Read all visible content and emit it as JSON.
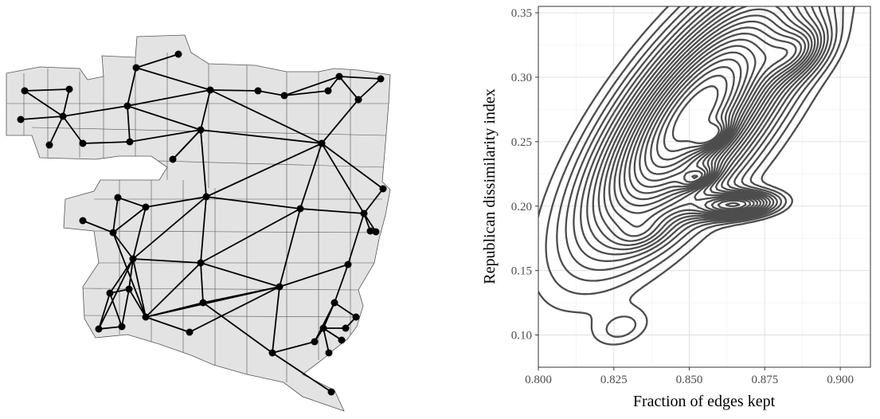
{
  "chart_data": [
    {
      "type": "other",
      "subtype": "map-graph",
      "description_nodes": 62,
      "colors": {
        "region_fill": "#e3e3e3",
        "region_stroke": "#555555",
        "edge": "#000000",
        "node": "#000000"
      }
    },
    {
      "type": "contour",
      "xlabel": "Fraction of edges kept",
      "ylabel": "Republican dissimilarity index",
      "xlim": [
        0.8,
        0.91
      ],
      "ylim": [
        0.075,
        0.355
      ],
      "x_ticks": [
        0.8,
        0.825,
        0.85,
        0.875,
        0.9
      ],
      "x_tick_labels": [
        "0.800",
        "0.825",
        "0.850",
        "0.875",
        "0.900"
      ],
      "y_ticks": [
        0.1,
        0.15,
        0.2,
        0.25,
        0.3,
        0.35
      ],
      "y_tick_labels": [
        "0.10",
        "0.15",
        "0.20",
        "0.25",
        "0.30",
        "0.35"
      ],
      "grid": true,
      "colors": {
        "contour": "#4d4d4d",
        "grid_major": "#e0e0e0",
        "grid_minor": "#f0f0f0",
        "border": "#333333"
      },
      "density": {
        "components": [
          {
            "x": 0.852,
            "y": 0.272,
            "sx": 0.024,
            "sy": 0.068,
            "rho": 0.74,
            "w": 1.0
          },
          {
            "x": 0.866,
            "y": 0.201,
            "sx": 0.009,
            "sy": 0.007,
            "rho": 0.2,
            "w": 0.55
          },
          {
            "x": 0.886,
            "y": 0.32,
            "sx": 0.007,
            "sy": 0.014,
            "rho": 0.4,
            "w": 0.28
          },
          {
            "x": 0.828,
            "y": 0.105,
            "sx": 0.007,
            "sy": 0.011,
            "rho": 0.3,
            "w": 0.12
          },
          {
            "x": 0.834,
            "y": 0.178,
            "sx": 0.006,
            "sy": 0.009,
            "rho": 0.3,
            "w": 0.1
          },
          {
            "x": 0.853,
            "y": 0.222,
            "sx": 0.004,
            "sy": 0.006,
            "rho": 0.5,
            "w": 0.25
          },
          {
            "x": 0.858,
            "y": 0.255,
            "sx": 0.004,
            "sy": 0.007,
            "rho": 0.5,
            "w": 0.22
          }
        ],
        "levels": 22
      }
    }
  ]
}
